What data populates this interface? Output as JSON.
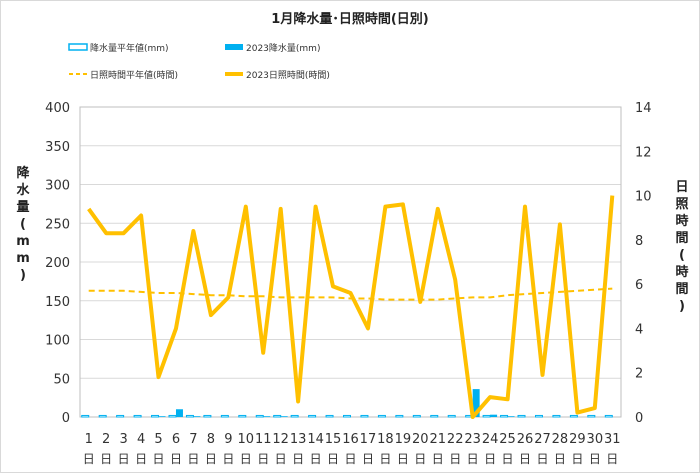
{
  "chart_data": {
    "type": "bar+line",
    "title": "1月降水量･日照時間(日別)",
    "ylabel_left": "降水量(mm)",
    "ylabel_right": "日照時間(時間)",
    "ylim_left": [
      0,
      400
    ],
    "ylim_right": [
      0,
      14
    ],
    "yticks_left": [
      "0",
      "50",
      "100",
      "150",
      "200",
      "250",
      "300",
      "350",
      "400"
    ],
    "yticks_right": [
      "0",
      "2",
      "4",
      "6",
      "8",
      "10",
      "12",
      "14"
    ],
    "grid": true,
    "legend_position": "top",
    "day_suffix": "日",
    "categories": [
      "1",
      "2",
      "3",
      "4",
      "5",
      "6",
      "7",
      "8",
      "9",
      "10",
      "11",
      "12",
      "13",
      "14",
      "15",
      "16",
      "17",
      "18",
      "19",
      "20",
      "21",
      "22",
      "23",
      "24",
      "25",
      "26",
      "27",
      "28",
      "29",
      "30",
      "31"
    ],
    "series": [
      {
        "name": "降水量平年値(mm)",
        "kind": "bar-outline",
        "axis": "left",
        "color": "#00b0f0",
        "values": [
          2,
          2,
          2,
          2,
          2,
          2,
          2,
          2,
          2,
          2,
          2,
          2,
          2,
          2,
          2,
          2,
          2,
          2,
          2,
          2,
          2,
          2,
          2,
          2,
          2,
          2,
          2,
          2,
          2,
          2,
          2
        ]
      },
      {
        "name": "2023降水量(mm)",
        "kind": "bar",
        "axis": "left",
        "color": "#00b0f0",
        "values": [
          0,
          0,
          0,
          0,
          1,
          10,
          1,
          0,
          0,
          0,
          1,
          1,
          0,
          0,
          0,
          0,
          0,
          0,
          0,
          0,
          0,
          0,
          36,
          3,
          1,
          0,
          0,
          0,
          0,
          0,
          0
        ]
      },
      {
        "name": "日照時間平年値(時間)",
        "kind": "line-dashed",
        "axis": "right",
        "color": "#ffc000",
        "values": [
          5.7,
          5.7,
          5.7,
          5.65,
          5.6,
          5.6,
          5.55,
          5.5,
          5.5,
          5.45,
          5.45,
          5.4,
          5.4,
          5.4,
          5.4,
          5.35,
          5.35,
          5.3,
          5.3,
          5.3,
          5.3,
          5.35,
          5.4,
          5.4,
          5.5,
          5.55,
          5.6,
          5.65,
          5.7,
          5.75,
          5.8
        ]
      },
      {
        "name": "2023日照時間(時間)",
        "kind": "line",
        "axis": "right",
        "color": "#ffc000",
        "values": [
          9.4,
          8.3,
          8.3,
          9.1,
          1.8,
          4.0,
          8.4,
          4.6,
          5.4,
          9.5,
          2.9,
          9.4,
          0.7,
          9.5,
          5.9,
          5.6,
          4.0,
          9.5,
          9.6,
          5.2,
          9.4,
          6.2,
          0.0,
          0.9,
          0.8,
          9.5,
          1.9,
          8.7,
          0.2,
          0.4,
          10.0
        ]
      }
    ]
  }
}
